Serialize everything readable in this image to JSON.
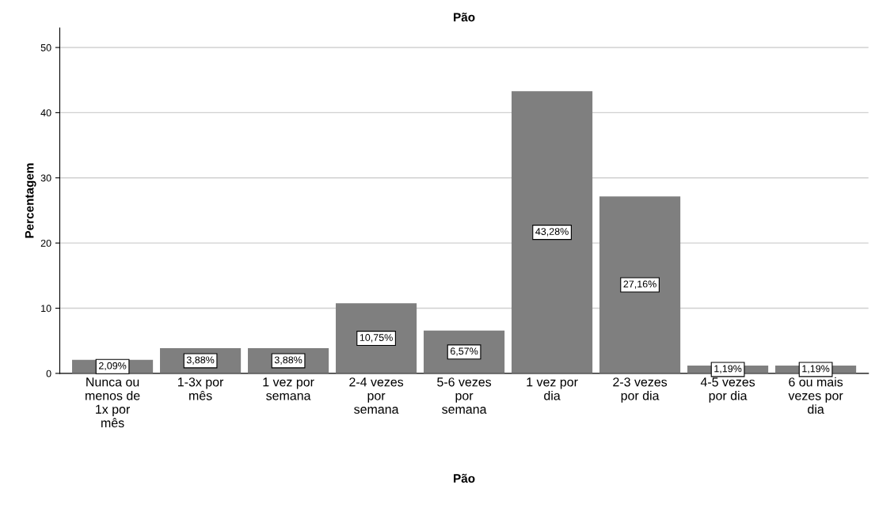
{
  "chart_data": {
    "type": "bar",
    "title": "Pão",
    "xlabel": "Pão",
    "ylabel": "Percentagem",
    "categories": [
      "Nunca ou\nmenos de\n1x por\nmês",
      "1-3x por\nmês",
      "1 vez por\nsemana",
      "2-4 vezes\npor\nsemana",
      "5-6 vezes\npor\nsemana",
      "1 vez por\ndia",
      "2-3 vezes\npor dia",
      "4-5 vezes\npor dia",
      "6 ou mais\nvezes por\ndia"
    ],
    "values": [
      2.09,
      3.88,
      3.88,
      10.75,
      6.57,
      43.28,
      27.16,
      1.19,
      1.19
    ],
    "value_labels": [
      "2,09%",
      "3,88%",
      "3,88%",
      "10,75%",
      "6,57%",
      "43,28%",
      "27,16%",
      "1,19%",
      "1,19%"
    ],
    "color": "#7f7f7f",
    "ylim": [
      0,
      53
    ],
    "yticks": [
      0,
      10,
      20,
      30,
      40,
      50
    ],
    "grid": "y"
  }
}
